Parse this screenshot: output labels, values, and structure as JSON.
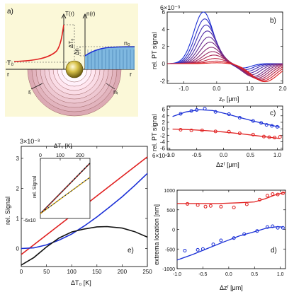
{
  "colors": {
    "red": "#e02020",
    "blue": "#1a2fd6",
    "black": "#111111",
    "panel_a_bg": "#fbf8d8",
    "inset_dash": "#e0b000",
    "inset_dash2": "#c03030"
  },
  "panel_a": {
    "label": "a)",
    "t_axis": "T(r)",
    "n_axis": "n(r)",
    "t0": "T₀",
    "n0": "n₀",
    "dT0": "ΔT₀",
    "dn": "Δn",
    "r_left": "r",
    "r_right": "r",
    "ri": "rᵢ",
    "ni": "nᵢ"
  },
  "chart_data": [
    {
      "id": "b",
      "type": "line",
      "label": "b)",
      "ylabel": "rel. PT signal",
      "xlabel": "zₚ [μm]",
      "y_multiplier": "6×10⁻³",
      "xlim": [
        -1.5,
        2.0
      ],
      "ylim": [
        -2.3,
        6.0
      ],
      "xticks": [
        -1.0,
        0.0,
        1.0,
        2.0
      ],
      "yticks": [
        -2,
        0,
        2,
        4,
        6
      ],
      "ytick_labels": [
        "-2",
        "0",
        "2",
        "4",
        "6"
      ],
      "series_count": 12,
      "peak_amplitudes": [
        6.0,
        5.2,
        4.5,
        3.8,
        3.1,
        2.5,
        1.9,
        1.4,
        1.0,
        0.6,
        0.3,
        0.1
      ],
      "trough_amplitudes": [
        0.5,
        0.7,
        0.9,
        1.1,
        1.3,
        1.5,
        1.6,
        1.7,
        1.8,
        1.9,
        2.0,
        2.1
      ]
    },
    {
      "id": "c",
      "type": "scatter+line",
      "label": "c)",
      "ylabel": "rel. PT signal",
      "xlabel": "Δzᶠ [μm]",
      "y_multiplier": "6×10⁻³",
      "xlim": [
        -1.05,
        1.1
      ],
      "ylim": [
        -6.5,
        7
      ],
      "xticks": [
        -1.0,
        -0.5,
        0.0,
        0.5,
        1.0
      ],
      "yticks": [
        -6,
        -4,
        -2,
        0,
        2,
        4,
        6
      ],
      "ytick_labels": [
        "-6",
        "-4",
        "-2",
        "0",
        "2",
        "4",
        "6"
      ],
      "series": [
        {
          "name": "blue",
          "points": [
            [
              -0.8,
              4.6
            ],
            [
              -0.6,
              5.5
            ],
            [
              -0.5,
              5.8
            ],
            [
              -0.35,
              6.2
            ],
            [
              -0.15,
              5.2
            ],
            [
              0.1,
              4.5
            ],
            [
              0.3,
              3.4
            ],
            [
              0.55,
              2.4
            ],
            [
              0.7,
              1.8
            ],
            [
              0.8,
              1.2
            ],
            [
              0.9,
              0.9
            ],
            [
              1.0,
              0.6
            ]
          ],
          "fit": [
            [
              -0.95,
              3.8
            ],
            [
              -0.7,
              5.2
            ],
            [
              -0.45,
              5.9
            ],
            [
              -0.2,
              5.6
            ],
            [
              0.05,
              4.6
            ],
            [
              0.3,
              3.5
            ],
            [
              0.55,
              2.4
            ],
            [
              0.8,
              1.4
            ],
            [
              1.05,
              0.5
            ]
          ]
        },
        {
          "name": "red",
          "points": [
            [
              -0.8,
              -0.3
            ],
            [
              -0.6,
              -0.5
            ],
            [
              -0.4,
              -0.5
            ],
            [
              -0.15,
              -0.8
            ],
            [
              0.1,
              -0.9
            ],
            [
              0.3,
              -1.4
            ],
            [
              0.55,
              -1.8
            ],
            [
              0.75,
              -2.4
            ],
            [
              0.85,
              -2.6
            ],
            [
              0.95,
              -2.7
            ],
            [
              1.05,
              -2.5
            ]
          ],
          "fit": [
            [
              -0.95,
              -0.1
            ],
            [
              -0.6,
              -0.3
            ],
            [
              -0.3,
              -0.6
            ],
            [
              0.0,
              -1.0
            ],
            [
              0.3,
              -1.5
            ],
            [
              0.6,
              -2.1
            ],
            [
              0.85,
              -2.6
            ],
            [
              1.05,
              -3.0
            ]
          ]
        }
      ]
    },
    {
      "id": "d",
      "type": "scatter+line",
      "label": "d)",
      "ylabel": "extrema location [nm]",
      "xlabel": "Δzᶠ [μm]",
      "xlim": [
        -1.0,
        1.1
      ],
      "ylim": [
        -1000,
        1000
      ],
      "xticks": [
        -1.0,
        -0.5,
        0.0,
        0.5,
        1.0
      ],
      "yticks": [
        -1000,
        -500,
        0,
        500,
        1000
      ],
      "ytick_labels": [
        "-1000",
        "-500",
        "0",
        "500",
        "1000"
      ],
      "series": [
        {
          "name": "red",
          "points": [
            [
              -0.8,
              650
            ],
            [
              -0.6,
              620
            ],
            [
              -0.45,
              580
            ],
            [
              -0.35,
              600
            ],
            [
              -0.15,
              580
            ],
            [
              0.1,
              560
            ],
            [
              0.35,
              640
            ],
            [
              0.6,
              760
            ],
            [
              0.75,
              860
            ],
            [
              0.85,
              900
            ],
            [
              0.95,
              890
            ],
            [
              1.05,
              920
            ]
          ],
          "fit": [
            [
              -1.0,
              660
            ],
            [
              -0.6,
              660
            ],
            [
              -0.2,
              660
            ],
            [
              0.2,
              680
            ],
            [
              0.5,
              700
            ],
            [
              0.7,
              780
            ],
            [
              0.9,
              880
            ],
            [
              1.1,
              950
            ]
          ]
        },
        {
          "name": "blue",
          "points": [
            [
              -0.85,
              -540
            ],
            [
              -0.6,
              -520
            ],
            [
              -0.5,
              -500
            ],
            [
              -0.3,
              -380
            ],
            [
              -0.15,
              -280
            ],
            [
              0.1,
              -220
            ],
            [
              0.3,
              -120
            ],
            [
              0.55,
              -40
            ],
            [
              0.75,
              60
            ],
            [
              0.85,
              80
            ],
            [
              0.95,
              40
            ],
            [
              1.05,
              40
            ]
          ],
          "fit": [
            [
              -1.0,
              -780
            ],
            [
              -0.7,
              -640
            ],
            [
              -0.4,
              -480
            ],
            [
              -0.1,
              -320
            ],
            [
              0.2,
              -170
            ],
            [
              0.5,
              -60
            ],
            [
              0.75,
              40
            ],
            [
              0.95,
              70
            ],
            [
              1.05,
              60
            ]
          ]
        }
      ]
    },
    {
      "id": "e",
      "type": "line",
      "label": "e)",
      "ylabel": "rel. Signal",
      "xlabel": "ΔT₀ [K]",
      "y_multiplier": "3×10⁻³",
      "xlim": [
        0,
        250
      ],
      "ylim": [
        -0.6,
        3.4
      ],
      "xticks": [
        0,
        50,
        100,
        150,
        200,
        250
      ],
      "yticks": [
        0,
        1,
        2,
        3
      ],
      "ytick_labels": [
        "0",
        "1",
        "2",
        "3"
      ],
      "series": [
        {
          "name": "red",
          "points": [
            [
              0,
              -0.2
            ],
            [
              50,
              0.45
            ],
            [
              100,
              1.1
            ],
            [
              150,
              1.75
            ],
            [
              200,
              2.4
            ],
            [
              250,
              3.05
            ]
          ]
        },
        {
          "name": "blue",
          "points": [
            [
              0,
              0.0
            ],
            [
              25,
              0.02
            ],
            [
              50,
              0.12
            ],
            [
              75,
              0.28
            ],
            [
              100,
              0.48
            ],
            [
              125,
              0.75
            ],
            [
              150,
              1.05
            ],
            [
              175,
              1.38
            ],
            [
              200,
              1.72
            ],
            [
              225,
              2.1
            ],
            [
              250,
              2.5
            ]
          ]
        },
        {
          "name": "black",
          "points": [
            [
              0,
              -0.55
            ],
            [
              25,
              -0.3
            ],
            [
              50,
              0.05
            ],
            [
              75,
              0.35
            ],
            [
              100,
              0.55
            ],
            [
              125,
              0.65
            ],
            [
              150,
              0.72
            ],
            [
              170,
              0.73
            ],
            [
              200,
              0.68
            ],
            [
              225,
              0.56
            ],
            [
              250,
              0.38
            ]
          ]
        }
      ],
      "inset": {
        "xlabel": "ΔT₀ [K]",
        "ylabel": "rel. Signal",
        "xticks": [
          0,
          100,
          200
        ],
        "xlim": [
          0,
          250
        ],
        "y_bottom_label": "-6x10",
        "series": [
          {
            "name": "upper",
            "points": [
              [
                0,
                0.0
              ],
              [
                250,
                1.0
              ]
            ]
          },
          {
            "name": "lower",
            "points": [
              [
                0,
                0.0
              ],
              [
                250,
                0.72
              ]
            ]
          }
        ]
      }
    }
  ]
}
